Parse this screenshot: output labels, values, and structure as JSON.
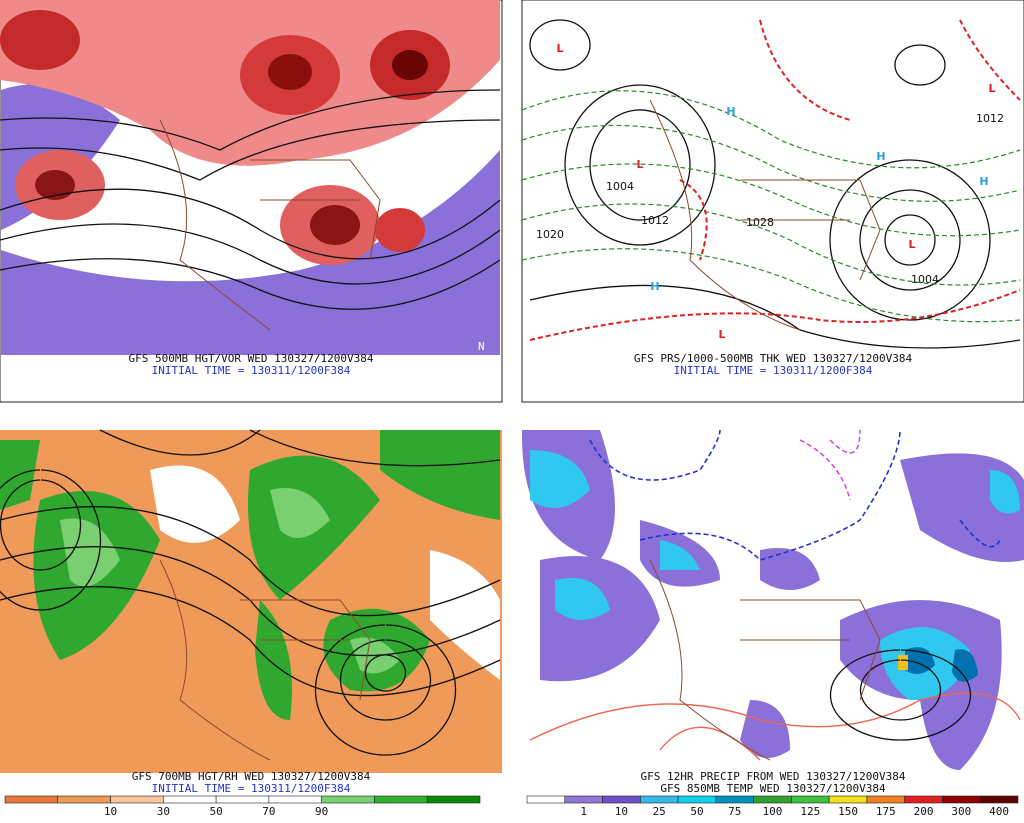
{
  "panels": [
    {
      "caption": "GFS 500MB HGT/VOR WED 130327/1200V384",
      "initial": "INITIAL TIME = 130311/1200F384"
    },
    {
      "caption": "GFS PRS/1000-500MB THK WED 130327/1200V384",
      "initial": "INITIAL TIME = 130311/1200F384",
      "map_labels": [
        "L",
        "L",
        "L",
        "L",
        "L",
        "H",
        "H",
        "H",
        "H",
        "1004",
        "1012",
        "1020",
        "1028",
        "1004",
        "1012"
      ]
    },
    {
      "caption": "GFS 700MB HGT/RH WED 130327/1200V384",
      "initial": "INITIAL TIME = 130311/1200F384",
      "colorbar": {
        "colors": [
          "#e8783a",
          "#f09a5a",
          "#f8c49a",
          "#ffffff",
          "#ffffff",
          "#ffffff",
          "#78d070",
          "#30b030",
          "#0a8a0a"
        ],
        "labels": [
          "10",
          "30",
          "50",
          "70",
          "90"
        ]
      }
    },
    {
      "caption": "GFS 12HR PRECIP FROM WED 130327/1200V384",
      "initial": "GFS 850MB TEMP WED 130327/1200V384",
      "colorbar": {
        "colors": [
          "#ffffff",
          "#9078d8",
          "#7050c8",
          "#38b8e8",
          "#10d0f0",
          "#0090c0",
          "#30a030",
          "#40c040",
          "#f0e020",
          "#f08020",
          "#e02020",
          "#900000",
          "#600000"
        ],
        "labels": [
          "1",
          "10",
          "25",
          "50",
          "75",
          "100",
          "125",
          "150",
          "175",
          "200",
          "300",
          "400"
        ]
      }
    }
  ]
}
